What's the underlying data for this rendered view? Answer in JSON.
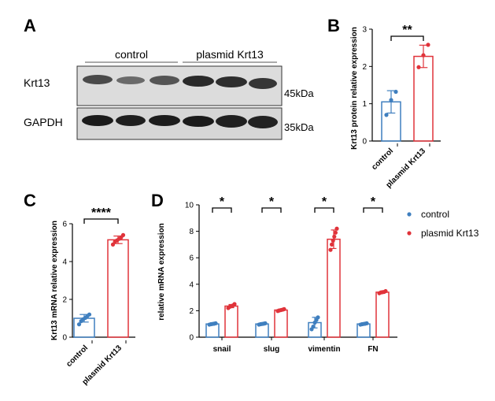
{
  "colors": {
    "control": "#3f7fbf",
    "plasmid": "#e0333a"
  },
  "panelA": {
    "letter": "A",
    "groups": [
      "control",
      "plasmid Krt13"
    ],
    "bands": [
      {
        "label": "Krt13",
        "size": "45kDa"
      },
      {
        "label": "GAPDH",
        "size": "35kDa"
      }
    ]
  },
  "panelB": {
    "letter": "B",
    "ylabel": "Krt13 protein relative expression",
    "yticks": [
      "0",
      "1",
      "2",
      "3"
    ],
    "ylim": [
      0,
      3
    ],
    "categories": [
      "control",
      "plasmid Krt13"
    ],
    "means": [
      1.05,
      2.27
    ],
    "sd": [
      0.3,
      0.3
    ],
    "points": [
      [
        0.7,
        1.1,
        1.32
      ],
      [
        1.98,
        2.3,
        2.58
      ]
    ],
    "significance": "**"
  },
  "panelC": {
    "letter": "C",
    "ylabel": "Krt13 mRNA relative expression",
    "yticks": [
      "0",
      "2",
      "4",
      "6"
    ],
    "ylim": [
      0,
      6
    ],
    "categories": [
      "control",
      "plasmid Krt13"
    ],
    "means": [
      1.0,
      5.15
    ],
    "sd": [
      0.2,
      0.2
    ],
    "points": [
      [
        0.68,
        0.85,
        0.95,
        1.02,
        1.12,
        1.2
      ],
      [
        4.9,
        5.05,
        5.12,
        5.2,
        5.28,
        5.4
      ]
    ],
    "significance": "****"
  },
  "panelD": {
    "letter": "D",
    "ylabel": "relative mRNA expression",
    "yticks": [
      "0",
      "2",
      "4",
      "6",
      "8",
      "10"
    ],
    "ylim": [
      0,
      10
    ],
    "categories": [
      "snail",
      "slug",
      "vimentin",
      "FN"
    ],
    "significance": [
      "*",
      "*",
      "*",
      "*"
    ],
    "series": [
      {
        "name": "control",
        "means": [
          1.0,
          1.0,
          1.1,
          1.0
        ],
        "sd": [
          0.05,
          0.05,
          0.4,
          0.05
        ],
        "points": [
          [
            0.95,
            0.98,
            1.0,
            1.02,
            1.05
          ],
          [
            0.95,
            0.98,
            1.0,
            1.02,
            1.05
          ],
          [
            0.6,
            0.8,
            1.1,
            1.3,
            1.5
          ],
          [
            0.95,
            0.98,
            1.0,
            1.02,
            1.05
          ]
        ]
      },
      {
        "name": "plasmid Krt13",
        "means": [
          2.35,
          2.05,
          7.4,
          3.4
        ],
        "sd": [
          0.12,
          0.08,
          0.7,
          0.08
        ],
        "points": [
          [
            2.2,
            2.3,
            2.35,
            2.4,
            2.5
          ],
          [
            1.98,
            2.02,
            2.05,
            2.08,
            2.12
          ],
          [
            6.6,
            7.0,
            7.3,
            7.6,
            7.9,
            8.2
          ],
          [
            3.32,
            3.38,
            3.4,
            3.42,
            3.48
          ]
        ]
      }
    ]
  }
}
